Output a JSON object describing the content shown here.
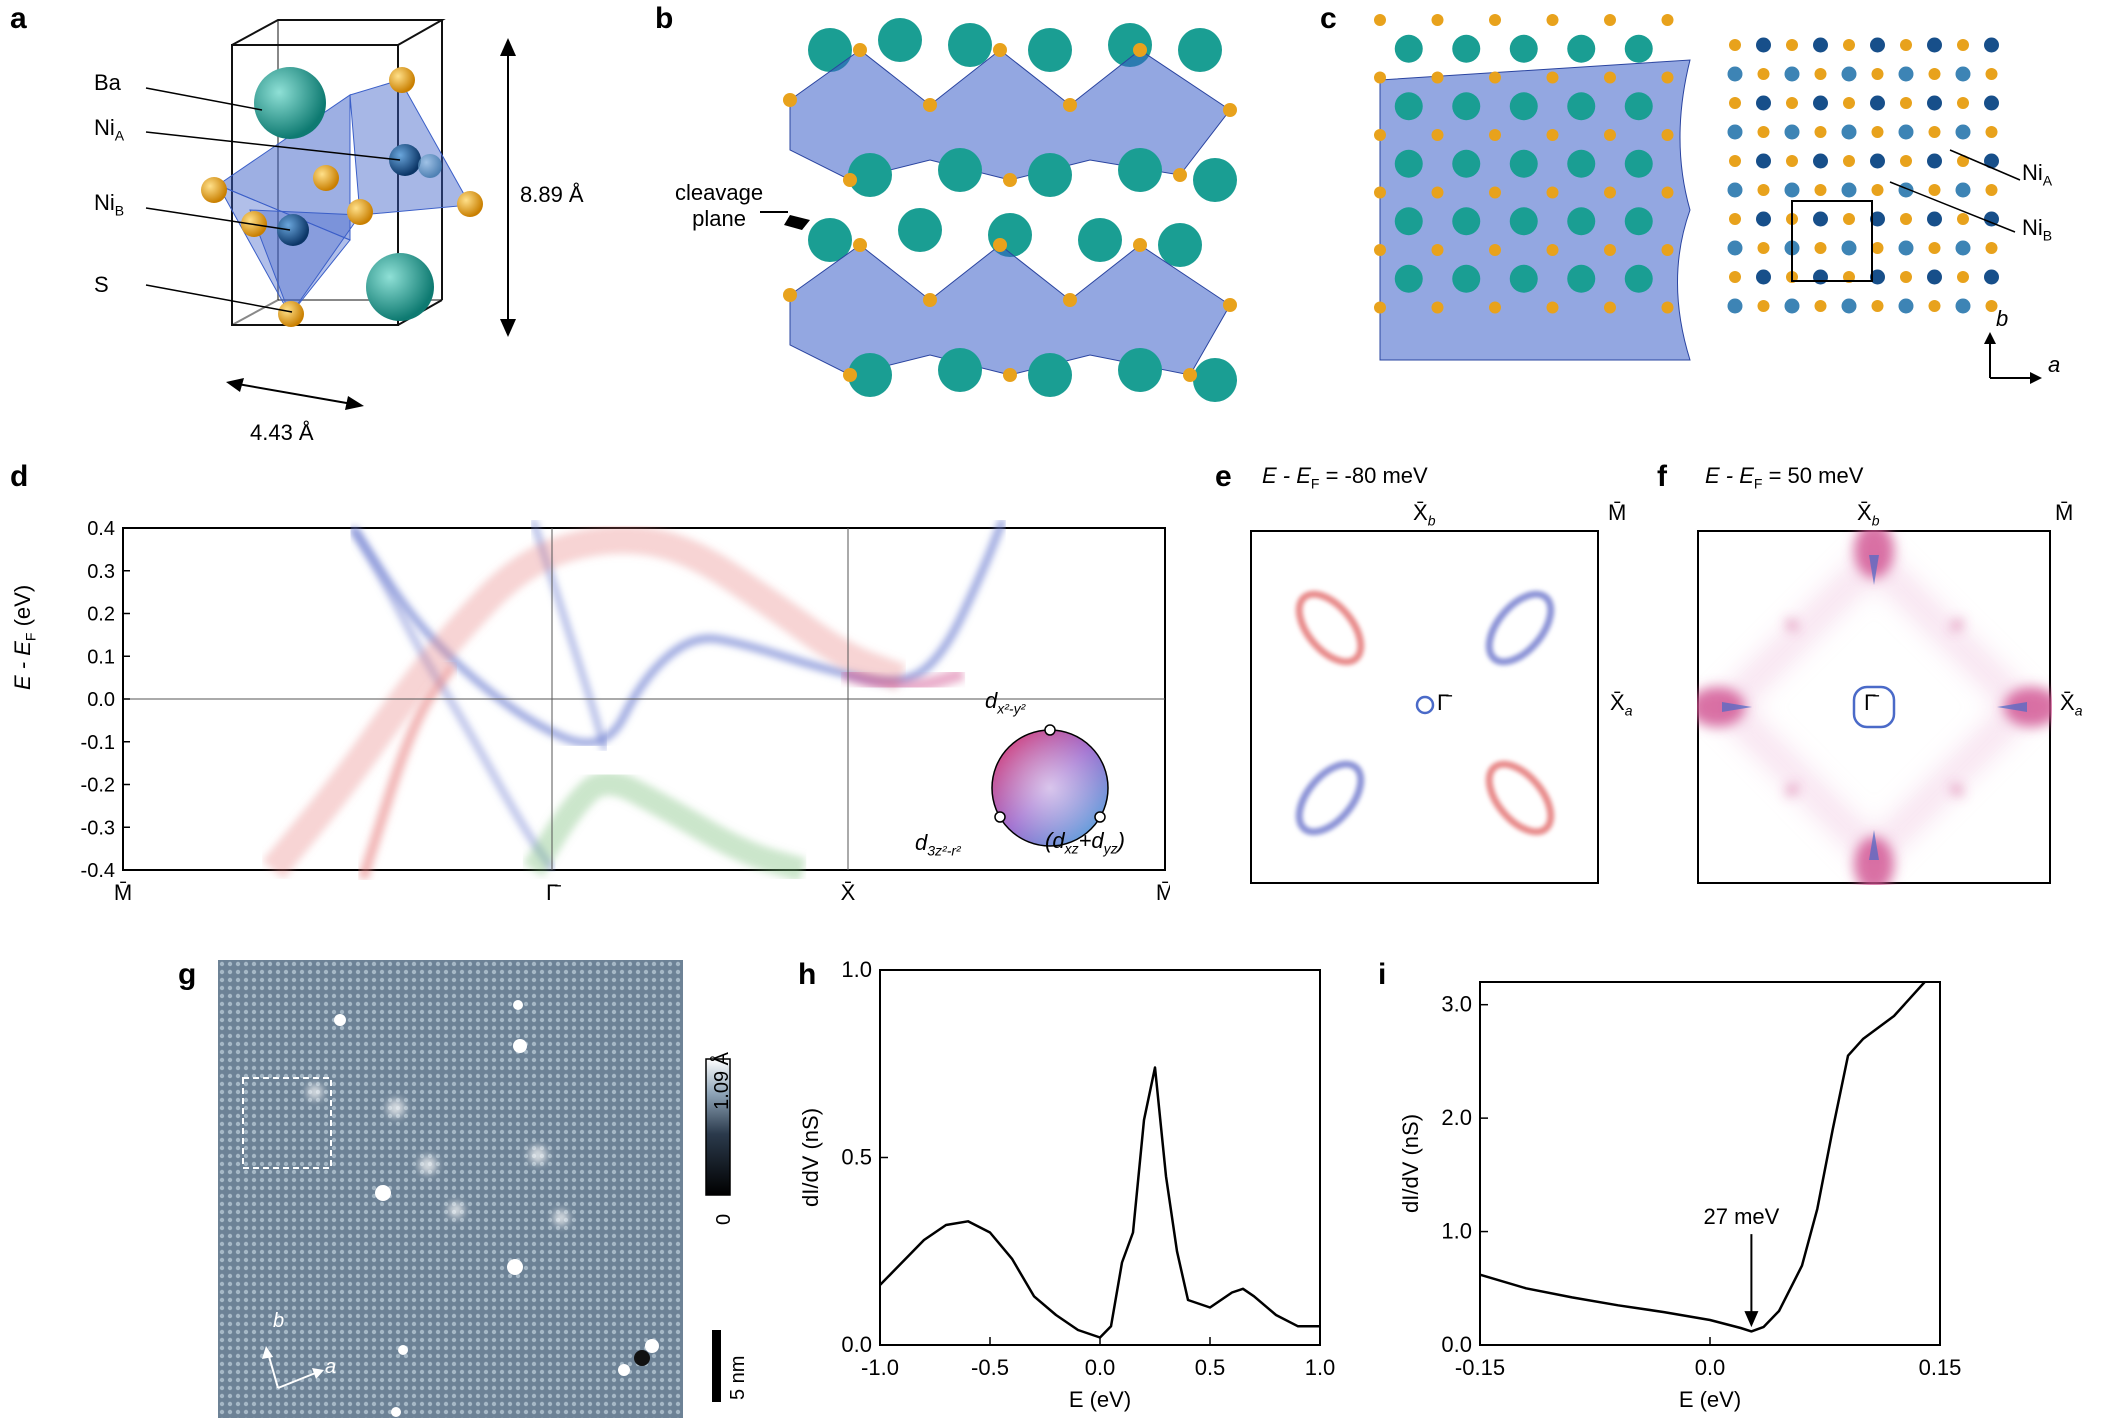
{
  "panels": {
    "a": {
      "letter": "a",
      "labels": {
        "ba": "Ba",
        "nia": "Ni",
        "nia_sub": "A",
        "nib": "Ni",
        "nib_sub": "B",
        "s": "S"
      },
      "dim_height": "8.89 Å",
      "dim_width": "4.43 Å"
    },
    "b": {
      "letter": "b",
      "cleavage_line1": "cleavage",
      "cleavage_line2": "plane"
    },
    "c": {
      "letter": "c",
      "nia": "Ni",
      "nia_sub": "A",
      "nib": "Ni",
      "nib_sub": "B",
      "axis_a": "a",
      "axis_b": "b"
    },
    "d": {
      "letter": "d",
      "ylabel_main": "E - E",
      "ylabel_sub": "F",
      "ylabel_unit": " (eV)",
      "ylim": [
        -0.4,
        0.4
      ],
      "yticks": [
        "0.4",
        "0.3",
        "0.2",
        "0.1",
        "0.0",
        "-0.1",
        "-0.2",
        "-0.3",
        "-0.4"
      ],
      "xticks": [
        "M̄",
        "Γ̄",
        "X̄",
        "M̄"
      ],
      "orbital_top": "d",
      "orbital_top_sub": "x²-y²",
      "orbital_left": "d",
      "orbital_left_sub": "3z²-r²",
      "orbital_right": "(d",
      "orbital_right_mid": "xz",
      "orbital_right_plus": "+d",
      "orbital_right_end": "yz",
      "orbital_right_close": ")"
    },
    "e": {
      "letter": "e",
      "title_E": "E",
      "title_mid": " - E",
      "title_sub": "F",
      "title_val": " = -80 meV",
      "xb": "X̄",
      "xb_sub": "b",
      "m": "M̄",
      "xa": "X̄",
      "xa_sub": "a",
      "gamma": "Γ̄"
    },
    "f": {
      "letter": "f",
      "title_E": "E",
      "title_mid": " - E",
      "title_sub": "F",
      "title_val": " = 50 meV",
      "xb": "X̄",
      "xb_sub": "b",
      "m": "M̄",
      "xa": "X̄",
      "xa_sub": "a",
      "gamma": "Γ̄"
    },
    "g": {
      "letter": "g",
      "cb_max": "1.09 Å",
      "cb_min": "0",
      "scale": "5 nm",
      "axis_a": "a",
      "axis_b": "b"
    },
    "h": {
      "letter": "h",
      "ylabel": "dI/dV (nS)",
      "xlabel": "E (eV)",
      "xticks": [
        "-1.0",
        "-0.5",
        "0.0",
        "0.5",
        "1.0"
      ],
      "yticks": [
        "0.0",
        "0.5",
        "1.0"
      ]
    },
    "i": {
      "letter": "i",
      "ylabel": "dI/dV (nS)",
      "xlabel": "E (eV)",
      "xticks": [
        "-0.15",
        "0.0",
        "0.15"
      ],
      "yticks": [
        "0.0",
        "1.0",
        "2.0",
        "3.0"
      ],
      "annotation": "27 meV"
    }
  },
  "colors": {
    "ba": "#1a9e93",
    "s": "#e8a21c",
    "nia": "#174f8a",
    "nib": "#3d84b5",
    "octa": "#3b5fc8",
    "band_blue": "#6f7fd0",
    "band_red": "#e88080",
    "band_green": "#7cc07c",
    "band_magenta": "#d0508e"
  },
  "chart_data": [
    {
      "type": "line",
      "title": "",
      "xlabel": "E (eV)",
      "ylabel": "dI/dV (nS)",
      "xlim": [
        -1.0,
        1.0
      ],
      "ylim": [
        0,
        1.0
      ],
      "series": [
        {
          "x": [
            -1.0,
            -0.9,
            -0.8,
            -0.7,
            -0.6,
            -0.5,
            -0.4,
            -0.3,
            -0.2,
            -0.1,
            0.0,
            0.05,
            0.1,
            0.15,
            0.2,
            0.25,
            0.3,
            0.35,
            0.4,
            0.5,
            0.6,
            0.65,
            0.7,
            0.8,
            0.9,
            1.0
          ],
          "values": [
            0.16,
            0.22,
            0.28,
            0.32,
            0.33,
            0.3,
            0.23,
            0.13,
            0.08,
            0.04,
            0.02,
            0.05,
            0.22,
            0.3,
            0.6,
            0.74,
            0.45,
            0.25,
            0.12,
            0.1,
            0.14,
            0.15,
            0.13,
            0.08,
            0.05,
            0.05
          ]
        }
      ]
    },
    {
      "type": "line",
      "title": "",
      "xlabel": "E (eV)",
      "ylabel": "dI/dV (nS)",
      "xlim": [
        -0.15,
        0.15
      ],
      "ylim": [
        0,
        3.2
      ],
      "series": [
        {
          "x": [
            -0.15,
            -0.12,
            -0.09,
            -0.06,
            -0.03,
            0.0,
            0.02,
            0.027,
            0.035,
            0.045,
            0.06,
            0.07,
            0.08,
            0.09,
            0.1,
            0.12,
            0.14
          ],
          "values": [
            0.62,
            0.5,
            0.42,
            0.35,
            0.29,
            0.22,
            0.15,
            0.12,
            0.16,
            0.3,
            0.7,
            1.2,
            1.9,
            2.55,
            2.7,
            2.9,
            3.2
          ]
        }
      ],
      "annotations": [
        {
          "text": "27 meV",
          "x": 0.027
        }
      ]
    }
  ]
}
